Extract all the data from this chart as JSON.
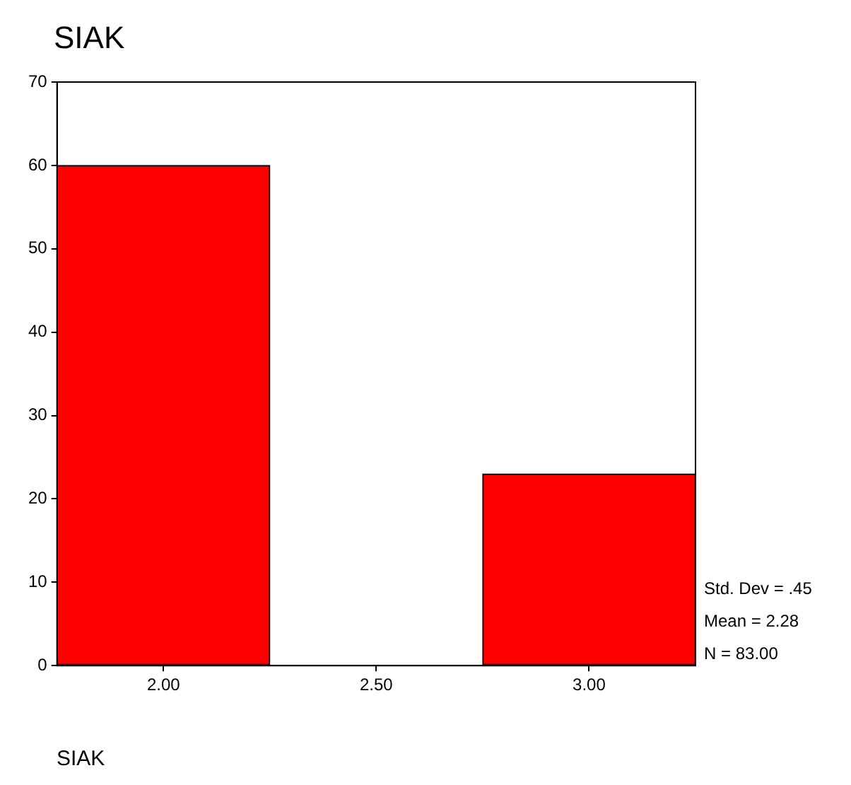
{
  "chart_data": {
    "type": "bar",
    "title": "SIAK",
    "xlabel": "SIAK",
    "categories": [
      "2.00",
      "2.50",
      "3.00"
    ],
    "values": [
      60,
      0,
      23
    ],
    "color": "#ff0000",
    "ylim": [
      0,
      70
    ],
    "yticks": [
      0,
      10,
      20,
      30,
      40,
      50,
      60,
      70
    ],
    "grid": false,
    "legend": false,
    "annotations": [
      "Std. Dev = .45",
      "Mean = 2.28",
      "N = 83.00"
    ]
  }
}
